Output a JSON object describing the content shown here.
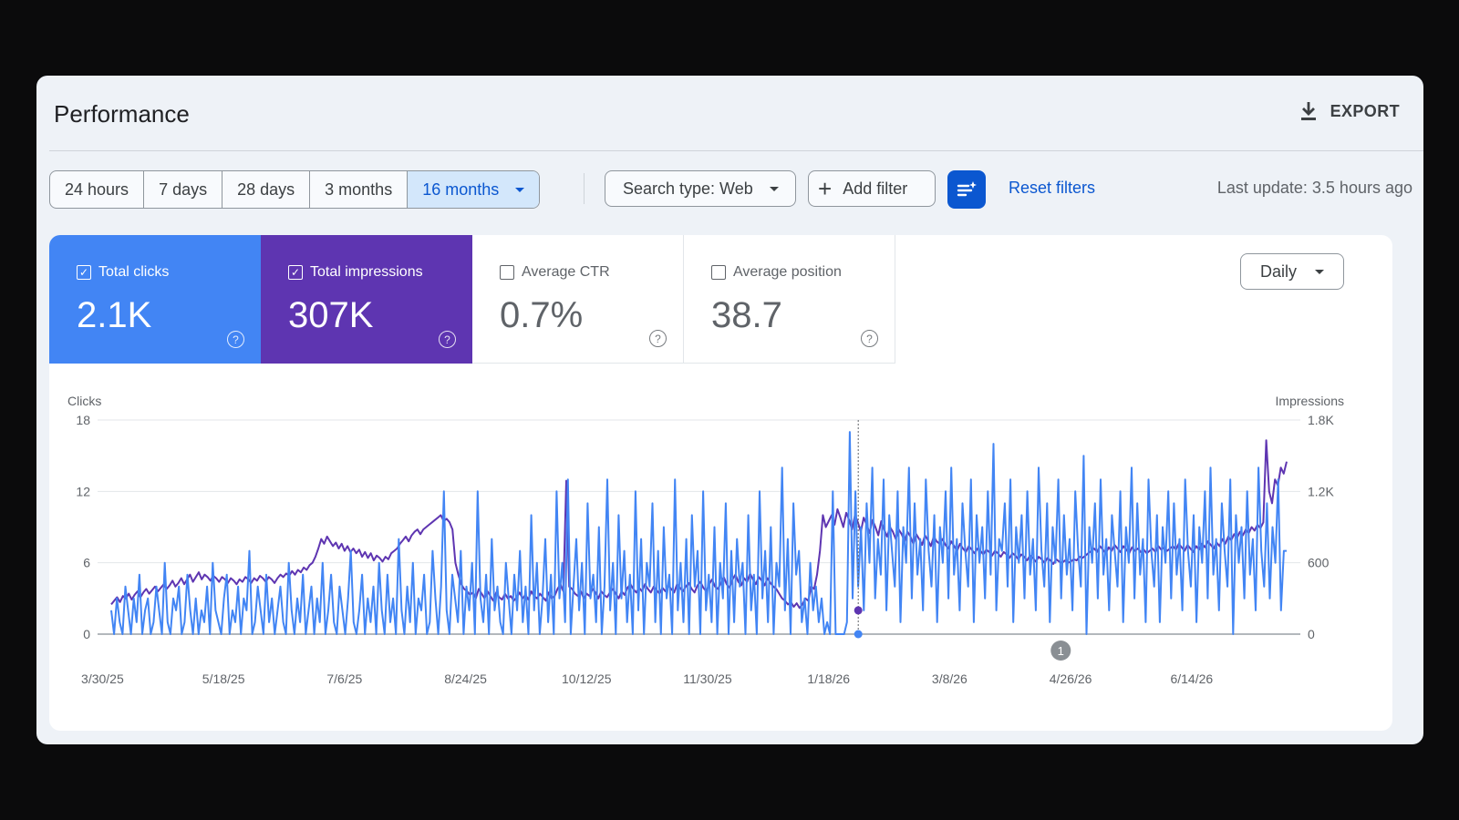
{
  "header": {
    "title": "Performance",
    "export_label": "EXPORT"
  },
  "toolbar": {
    "ranges": [
      "24 hours",
      "7 days",
      "28 days",
      "3 months",
      "16 months"
    ],
    "active_range": "16 months",
    "search_type": "Search type: Web",
    "add_filter": "Add filter",
    "reset_filters": "Reset filters",
    "last_update": "Last update: 3.5 hours ago"
  },
  "metrics": {
    "clicks": {
      "label": "Total clicks",
      "value": "2.1K",
      "checked": true
    },
    "impressions": {
      "label": "Total impressions",
      "value": "307K",
      "checked": true
    },
    "ctr": {
      "label": "Average CTR",
      "value": "0.7%",
      "checked": false
    },
    "position": {
      "label": "Average position",
      "value": "38.7",
      "checked": false
    }
  },
  "granularity": "Daily",
  "colors": {
    "clicks": "#4285f4",
    "impressions": "#5e35b1",
    "accent": "#0b57d0"
  },
  "icons": [
    "download-icon",
    "chevron-down-icon",
    "plus-icon",
    "filter-sparkle-icon",
    "help-icon",
    "checkbox-icon"
  ],
  "chart_data": {
    "type": "line",
    "left_axis_label": "Clicks",
    "right_axis_label": "Impressions",
    "left_ticks": [
      "0",
      "6",
      "12",
      "18"
    ],
    "right_ticks": [
      "0",
      "600",
      "1.2K",
      "1.8K"
    ],
    "ylim_left": [
      0,
      18
    ],
    "ylim_right": [
      0,
      1800
    ],
    "x_tick_labels": [
      "3/30/25",
      "5/18/25",
      "7/6/25",
      "8/24/25",
      "10/12/25",
      "11/30/25",
      "1/18/26",
      "3/8/26",
      "4/26/26",
      "6/14/26"
    ],
    "x_range": [
      "2025-03-28",
      "2026-07-28"
    ],
    "annotation": {
      "label": "1",
      "date": "2026-04-22"
    },
    "hover_date": "2026-01-30",
    "series": [
      {
        "name": "Clicks",
        "axis": "left",
        "color": "#4285f4",
        "values": [
          2,
          0,
          3,
          1,
          0,
          4,
          2,
          0,
          3,
          1,
          5,
          0,
          2,
          3,
          0,
          1,
          4,
          2,
          0,
          6,
          1,
          0,
          3,
          2,
          4,
          0,
          1,
          5,
          2,
          0,
          3,
          0,
          2,
          1,
          4,
          0,
          6,
          2,
          1,
          0,
          3,
          5,
          0,
          2,
          1,
          4,
          0,
          3,
          2,
          7,
          0,
          1,
          4,
          2,
          0,
          5,
          1,
          3,
          0,
          2,
          4,
          1,
          0,
          6,
          2,
          0,
          3,
          1,
          5,
          0,
          2,
          4,
          0,
          3,
          1,
          6,
          0,
          2,
          5,
          1,
          0,
          4,
          2,
          0,
          3,
          7,
          1,
          0,
          2,
          5,
          0,
          3,
          1,
          4,
          0,
          6,
          2,
          0,
          5,
          1,
          3,
          0,
          8,
          2,
          0,
          4,
          1,
          6,
          0,
          3,
          2,
          5,
          0,
          1,
          7,
          3,
          0,
          4,
          12,
          2,
          0,
          5,
          3,
          1,
          7,
          0,
          4,
          2,
          6,
          0,
          12,
          3,
          1,
          5,
          0,
          8,
          2,
          4,
          1,
          0,
          6,
          3,
          0,
          5,
          2,
          7,
          1,
          4,
          0,
          10,
          2,
          6,
          0,
          3,
          8,
          1,
          5,
          0,
          12,
          3,
          6,
          1,
          13,
          0,
          4,
          8,
          2,
          6,
          0,
          11,
          3,
          5,
          1,
          9,
          0,
          4,
          13,
          2,
          6,
          0,
          10,
          3,
          7,
          1,
          5,
          0,
          12,
          2,
          8,
          0,
          6,
          4,
          11,
          1,
          7,
          0,
          9,
          3,
          5,
          0,
          13,
          2,
          6,
          1,
          8,
          0,
          10,
          4,
          7,
          0,
          12,
          2,
          5,
          1,
          9,
          0,
          6,
          3,
          11,
          0,
          7,
          1,
          8,
          4,
          6,
          0,
          10,
          2,
          5,
          0,
          12,
          3,
          7,
          1,
          9,
          0,
          6,
          4,
          14,
          2,
          8,
          0,
          11,
          5,
          7,
          1,
          3,
          0,
          6,
          2,
          4,
          1,
          3,
          0,
          1,
          0,
          12,
          0,
          0,
          0,
          0,
          1,
          17,
          3,
          12,
          4,
          9,
          2,
          11,
          6,
          14,
          3,
          8,
          5,
          13,
          2,
          10,
          7,
          4,
          12,
          1,
          9,
          6,
          14,
          3,
          11,
          5,
          8,
          2,
          13,
          7,
          4,
          10,
          1,
          9,
          6,
          12,
          3,
          14,
          5,
          8,
          2,
          11,
          7,
          4,
          13,
          1,
          10,
          6,
          9,
          3,
          12,
          5,
          16,
          2,
          8,
          7,
          11,
          4,
          13,
          1,
          9,
          6,
          10,
          3,
          12,
          5,
          8,
          2,
          14,
          7,
          4,
          11,
          1,
          9,
          6,
          13,
          3,
          10,
          5,
          8,
          2,
          12,
          7,
          4,
          15,
          0,
          9,
          6,
          11,
          3,
          13,
          5,
          8,
          2,
          10,
          7,
          4,
          12,
          1,
          9,
          6,
          14,
          3,
          11,
          5,
          8,
          1,
          13,
          7,
          4,
          10,
          1,
          9,
          6,
          12,
          3,
          11,
          5,
          8,
          2,
          13,
          7,
          4,
          10,
          1,
          9,
          6,
          12,
          3,
          14,
          5,
          8,
          2,
          11,
          7,
          4,
          13,
          0,
          10,
          6,
          9,
          3,
          12,
          5,
          8,
          2,
          14,
          7,
          4,
          11,
          3,
          9,
          6,
          13,
          2,
          7,
          7
        ]
      },
      {
        "name": "Impressions",
        "axis": "right",
        "color": "#5e35b1",
        "values": [
          250,
          280,
          310,
          270,
          320,
          300,
          340,
          290,
          330,
          360,
          310,
          350,
          380,
          340,
          370,
          400,
          360,
          390,
          420,
          380,
          410,
          450,
          400,
          430,
          470,
          420,
          460,
          500,
          440,
          480,
          520,
          460,
          500,
          480,
          450,
          490,
          470,
          440,
          480,
          460,
          430,
          470,
          450,
          420,
          460,
          440,
          480,
          460,
          430,
          470,
          450,
          490,
          470,
          440,
          480,
          460,
          430,
          470,
          500,
          480,
          510,
          490,
          530,
          500,
          540,
          520,
          560,
          540,
          580,
          600,
          650,
          720,
          800,
          760,
          820,
          780,
          740,
          770,
          720,
          760,
          700,
          740,
          690,
          720,
          680,
          710,
          650,
          690,
          640,
          680,
          620,
          660,
          640,
          610,
          650,
          630,
          680,
          700,
          720,
          760,
          790,
          820,
          780,
          830,
          860,
          880,
          840,
          880,
          900,
          920,
          940,
          960,
          980,
          1000,
          950,
          970,
          940,
          880,
          600,
          500,
          420,
          380,
          360,
          330,
          350,
          300,
          380,
          340,
          300,
          360,
          320,
          280,
          350,
          310,
          290,
          340,
          300,
          320,
          280,
          310,
          350,
          300,
          330,
          290,
          360,
          320,
          300,
          340,
          310,
          280,
          350,
          300,
          320,
          380,
          420,
          360,
          1290,
          400,
          380,
          340,
          320,
          360,
          300,
          340,
          320,
          380,
          350,
          300,
          360,
          330,
          310,
          350,
          380,
          340,
          300,
          360,
          330,
          390,
          420,
          380,
          350,
          390,
          360,
          420,
          380,
          350,
          400,
          370,
          340,
          390,
          360,
          410,
          380,
          350,
          420,
          390,
          360,
          400,
          430,
          380,
          350,
          410,
          440,
          390,
          360,
          420,
          460,
          400,
          380,
          430,
          480,
          420,
          390,
          460,
          500,
          440,
          410,
          470,
          440,
          510,
          460,
          420,
          480,
          450,
          410,
          470,
          430,
          400,
          380,
          340,
          300,
          280,
          250,
          270,
          230,
          260,
          220,
          250,
          300,
          280,
          400,
          380,
          500,
          700,
          1000,
          900,
          950,
          1000,
          920,
          1050,
          980,
          900,
          1020,
          960,
          880,
          1000,
          940,
          860,
          980,
          920,
          850,
          960,
          900,
          830,
          950,
          880,
          820,
          900,
          860,
          800,
          880,
          840,
          780,
          860,
          820,
          760,
          840,
          800,
          750,
          830,
          790,
          740,
          820,
          780,
          760,
          800,
          750,
          720,
          780,
          740,
          700,
          760,
          720,
          690,
          740,
          710,
          680,
          720,
          700,
          670,
          710,
          690,
          660,
          700,
          680,
          650,
          690,
          670,
          640,
          680,
          660,
          630,
          670,
          650,
          620,
          660,
          640,
          610,
          650,
          630,
          600,
          640,
          620,
          590,
          630,
          610,
          600,
          620,
          600,
          610,
          630,
          620,
          650,
          640,
          660,
          680,
          700,
          720,
          690,
          740,
          710,
          680,
          730,
          700,
          750,
          720,
          690,
          740,
          710,
          680,
          730,
          700,
          720,
          690,
          710,
          680,
          700,
          720,
          690,
          740,
          710,
          730,
          700,
          720,
          740,
          710,
          760,
          730,
          700,
          750,
          720,
          690,
          740,
          710,
          760,
          730,
          780,
          750,
          720,
          770,
          740,
          800,
          760,
          820,
          790,
          840,
          810,
          860,
          830,
          880,
          850,
          900,
          870,
          920,
          890,
          940,
          1630,
          1200,
          1100,
          1300,
          1250,
          1400,
          1350,
          1450
        ]
      }
    ]
  }
}
